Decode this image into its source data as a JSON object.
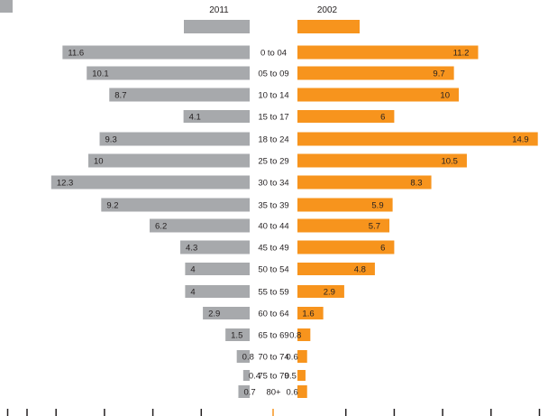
{
  "colors": {
    "left_series": "#a7a9ac",
    "right_series": "#f7941d",
    "label_text": "#231f20",
    "axis": "#231f20"
  },
  "chart_data": {
    "type": "bar",
    "orientation": "horizontal-diverging",
    "title": "",
    "legend": [
      {
        "name": "2011",
        "color": "#a7a9ac",
        "side": "left"
      },
      {
        "name": "2002",
        "color": "#f7941d",
        "side": "right"
      }
    ],
    "categories": [
      "0 to 04",
      "05 to 09",
      "10 to 14",
      "15 to 17",
      "18 to 24",
      "25 to 29",
      "30 to 34",
      "35 to 39",
      "40 to 44",
      "45 to 49",
      "50 to 54",
      "55 to 59",
      "60 to 64",
      "65 to 69",
      "70 to 74",
      "75 to 79",
      "80+"
    ],
    "series": [
      {
        "name": "2011",
        "values": [
          11.6,
          10.1,
          8.7,
          4.1,
          9.3,
          10,
          12.3,
          9.2,
          6.2,
          4.3,
          4,
          4,
          2.9,
          1.5,
          0.8,
          0.4,
          0.7
        ],
        "labels": [
          "11.6",
          "10.1",
          "8.7",
          "4.1",
          "9.3",
          "10",
          "12.3",
          "9.2",
          "6.2",
          "4.3",
          "4",
          "4",
          "2.9",
          "1.5",
          "0.8",
          "0.4",
          "0.7"
        ]
      },
      {
        "name": "2002",
        "values": [
          11.2,
          9.7,
          10,
          6,
          14.9,
          10.5,
          8.3,
          5.9,
          5.7,
          6,
          4.8,
          2.9,
          1.6,
          0.8,
          0.6,
          0.5,
          0.6
        ],
        "labels": [
          "11.2",
          "9.7",
          "10",
          "6",
          "14.9",
          "10.5",
          "8.3",
          "5.9",
          "5.7",
          "6",
          "4.8",
          "2.9",
          "1.6",
          "0.8",
          "0.6",
          "0.5",
          "0.6"
        ]
      }
    ],
    "xlim": [
      0,
      15
    ],
    "grid": false
  }
}
